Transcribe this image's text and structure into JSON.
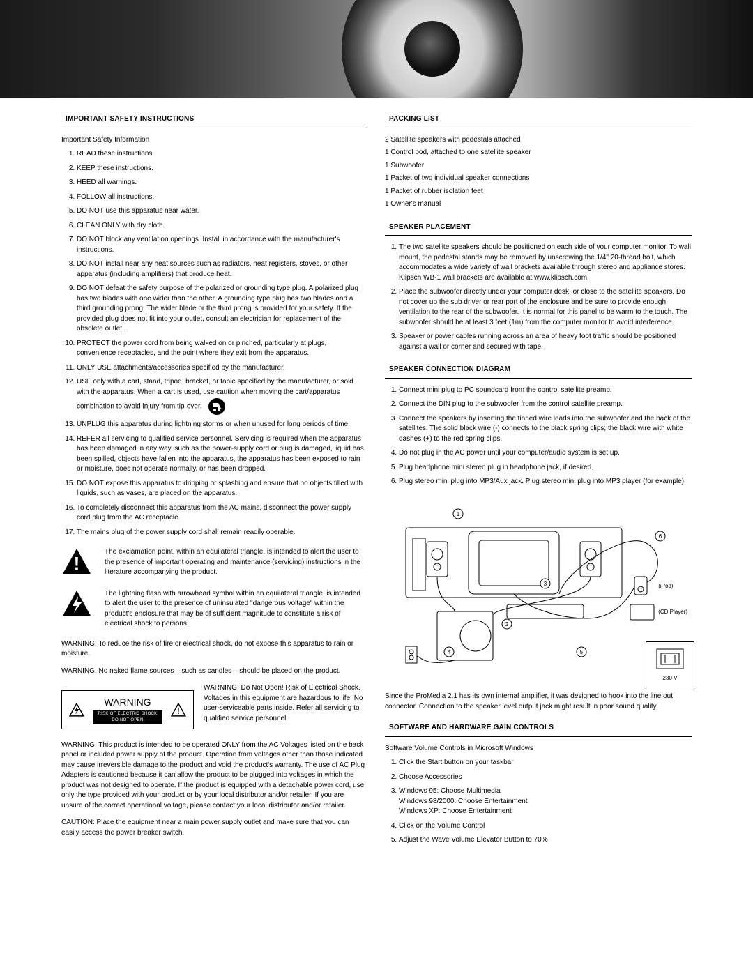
{
  "left": {
    "safety_heading": "IMPORTANT SAFETY INSTRUCTIONS",
    "safety_intro": "Important Safety Information",
    "safety_items": [
      "READ these instructions.",
      "KEEP these instructions.",
      "HEED all warnings.",
      "FOLLOW all instructions.",
      "DO NOT use this apparatus near water.",
      "CLEAN ONLY with dry cloth.",
      "DO NOT block any ventilation openings. Install in accordance with the manufacturer's instructions.",
      "DO NOT install near any heat sources such as radiators, heat registers, stoves, or other apparatus (including amplifiers) that produce heat.",
      "DO NOT defeat the safety purpose of the polarized or grounding type plug. A polarized plug has two blades with one wider than the other. A grounding type plug has two blades and a third grounding prong. The wider blade or the third prong is provided for your safety. If the provided plug does not fit into your outlet, consult an electrician for replacement of the obsolete outlet.",
      "PROTECT the power cord from being walked on or pinched, particularly at plugs, convenience receptacles, and the point where they exit from the apparatus.",
      "ONLY USE attachments/accessories specified by the manufacturer.",
      "USE only with a cart, stand, tripod, bracket, or table specified by the manufacturer, or sold with the apparatus. When a cart is used, use caution when moving the cart/apparatus combination to avoid injury from tip-over.",
      "UNPLUG this apparatus during lightning storms or when unused for long periods of time.",
      "REFER all servicing to qualified service personnel. Servicing is required when the apparatus has been damaged in any way, such as the power-supply cord or plug is damaged, liquid has been spilled, objects have fallen into the apparatus, the apparatus has been exposed to rain or moisture, does not operate normally, or has been dropped.",
      "DO NOT expose this apparatus to dripping or splashing and ensure that no objects filled with liquids, such as vases, are placed on the apparatus.",
      "To completely disconnect this apparatus from the AC mains, disconnect the power supply cord plug from the AC receptacle.",
      "The mains plug of the power supply cord shall remain readily operable."
    ],
    "exclaim_text": "The exclamation point, within an equilateral triangle, is intended to alert the user to the presence of important operating and maintenance (servicing) instructions in the literature accompanying the product.",
    "bolt_text": "The lightning flash with arrowhead symbol within an equilateral triangle, is intended to alert the user to the presence of uninsulated \"dangerous voltage\" within the product's enclosure that may be of sufficient magnitude to constitute a risk of electrical shock to persons.",
    "warn_rain": "WARNING: To reduce the risk of fire or electrical shock, do not expose this apparatus to rain or moisture.",
    "warn_flame": "WARNING: No naked flame sources – such as candles – should be placed on the product.",
    "plate_label": "WARNING",
    "plate_sub": "RISK OF ELECTRIC SHOCK DO NOT OPEN",
    "plate_text": "WARNING: Do Not Open! Risk of Electrical Shock. Voltages in this equipment are hazardous to life. No user-serviceable parts inside. Refer all servicing to qualified service personnel.",
    "warn_ac": "WARNING: This product is intended to be operated ONLY from the AC Voltages listed on the back panel or included power supply of the product. Operation from voltages other than those indicated may cause irreversible damage to the product and void the product's warranty. The use of AC Plug Adapters is cautioned because it can allow the product to be plugged into voltages in which the product was not designed to operate. If the product is equipped with a detachable power cord, use only the type provided with your product or by your local distributor and/or retailer. If you are unsure of the correct operational voltage, please contact your local distributor and/or retailer.",
    "caution": "CAUTION: Place the equipment near a main power supply outlet and make sure that you can easily access the power breaker switch."
  },
  "right": {
    "packing_heading": "PACKING LIST",
    "packing_items": [
      "2 Satellite speakers with pedestals attached",
      "1 Control pod, attached to one satellite speaker",
      "1 Subwoofer",
      "1 Packet of two individual speaker connections",
      "1 Packet of rubber isolation feet",
      "1 Owner's manual"
    ],
    "placement_heading": "SPEAKER PLACEMENT",
    "placement_items": [
      "The two satellite speakers should be positioned on each side of your computer monitor. To wall mount, the pedestal stands may be removed by unscrewing the 1/4\" 20-thread bolt, which accommodates a wide variety of wall brackets available through stereo and appliance stores. Klipsch WB-1 wall brackets are available at www.klipsch.com.",
      "Place the subwoofer directly under your computer desk, or close to the satellite speakers. Do not cover up the sub driver or rear port of the enclosure and be sure to provide enough ventilation to the rear of the subwoofer. It is normal for this panel to be warm to the touch. The subwoofer should be at least 3 feet (1m) from the computer monitor to avoid interference.",
      "Speaker or power cables running across an area of heavy foot traffic should be positioned against a wall or corner and secured with tape."
    ],
    "connection_heading": "SPEAKER CONNECTION DIAGRAM",
    "connection_items": [
      "Connect mini plug to PC soundcard from the control satellite preamp.",
      "Connect the DIN plug to the subwoofer from the control satellite preamp.",
      "Connect the speakers by inserting the tinned wire leads into the subwoofer and the back of the satellites. The solid black wire (-) connects to the black spring clips; the black wire with white dashes (+) to the red spring clips.",
      "Do not plug in the AC power until your computer/audio system is set up.",
      "Plug headphone mini stereo plug in headphone jack, if desired.",
      "Plug stereo mini plug into MP3/Aux jack. Plug stereo mini plug into MP3 player (for example)."
    ],
    "diagram_labels": {
      "ipod": "(iPod)",
      "cd": "(CD Player)",
      "voltage": "230 V"
    },
    "diagram_note": "Since the ProMedia 2.1 has its own internal amplifier, it was designed to hook into the line out connector. Connection to the speaker level output jack might result in poor sound quality.",
    "gain_heading": "SOFTWARE AND HARDWARE GAIN CONTROLS",
    "gain_intro": "Software Volume Controls in Microsoft Windows",
    "gain_items": [
      "Click the Start button on your taskbar",
      "Choose Accessories",
      "Windows 95: Choose Multimedia\nWindows 98/2000: Choose Entertainment\nWindows XP: Choose Entertainment",
      "Click on the Volume Control",
      "Adjust the Wave Volume Elevator Button to 70%"
    ]
  }
}
